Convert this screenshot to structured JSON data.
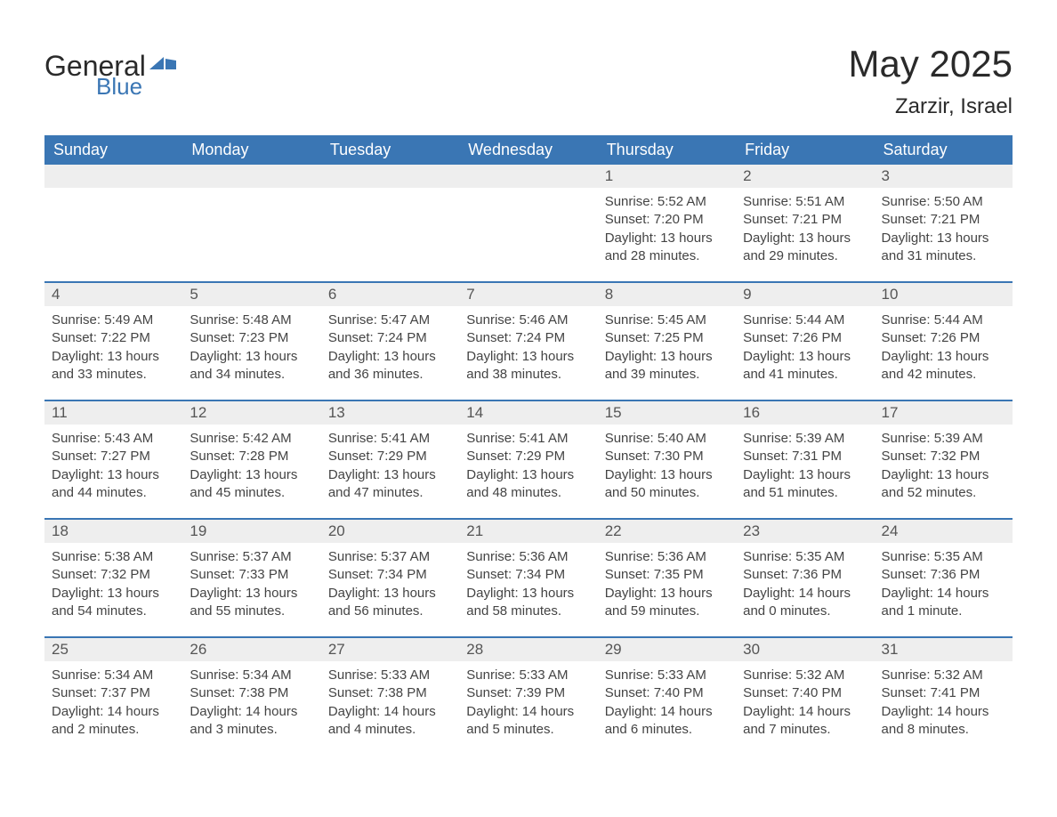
{
  "logo": {
    "text1": "General",
    "text2": "Blue"
  },
  "title": "May 2025",
  "location": "Zarzir, Israel",
  "colors": {
    "header_bg": "#3a76b4",
    "header_text": "#ffffff",
    "daynum_bg": "#eeeeee",
    "border": "#3a76b4",
    "body_text": "#444444"
  },
  "day_headers": [
    "Sunday",
    "Monday",
    "Tuesday",
    "Wednesday",
    "Thursday",
    "Friday",
    "Saturday"
  ],
  "weeks": [
    [
      {
        "num": "",
        "lines": []
      },
      {
        "num": "",
        "lines": []
      },
      {
        "num": "",
        "lines": []
      },
      {
        "num": "",
        "lines": []
      },
      {
        "num": "1",
        "lines": [
          "Sunrise: 5:52 AM",
          "Sunset: 7:20 PM",
          "Daylight: 13 hours and 28 minutes."
        ]
      },
      {
        "num": "2",
        "lines": [
          "Sunrise: 5:51 AM",
          "Sunset: 7:21 PM",
          "Daylight: 13 hours and 29 minutes."
        ]
      },
      {
        "num": "3",
        "lines": [
          "Sunrise: 5:50 AM",
          "Sunset: 7:21 PM",
          "Daylight: 13 hours and 31 minutes."
        ]
      }
    ],
    [
      {
        "num": "4",
        "lines": [
          "Sunrise: 5:49 AM",
          "Sunset: 7:22 PM",
          "Daylight: 13 hours and 33 minutes."
        ]
      },
      {
        "num": "5",
        "lines": [
          "Sunrise: 5:48 AM",
          "Sunset: 7:23 PM",
          "Daylight: 13 hours and 34 minutes."
        ]
      },
      {
        "num": "6",
        "lines": [
          "Sunrise: 5:47 AM",
          "Sunset: 7:24 PM",
          "Daylight: 13 hours and 36 minutes."
        ]
      },
      {
        "num": "7",
        "lines": [
          "Sunrise: 5:46 AM",
          "Sunset: 7:24 PM",
          "Daylight: 13 hours and 38 minutes."
        ]
      },
      {
        "num": "8",
        "lines": [
          "Sunrise: 5:45 AM",
          "Sunset: 7:25 PM",
          "Daylight: 13 hours and 39 minutes."
        ]
      },
      {
        "num": "9",
        "lines": [
          "Sunrise: 5:44 AM",
          "Sunset: 7:26 PM",
          "Daylight: 13 hours and 41 minutes."
        ]
      },
      {
        "num": "10",
        "lines": [
          "Sunrise: 5:44 AM",
          "Sunset: 7:26 PM",
          "Daylight: 13 hours and 42 minutes."
        ]
      }
    ],
    [
      {
        "num": "11",
        "lines": [
          "Sunrise: 5:43 AM",
          "Sunset: 7:27 PM",
          "Daylight: 13 hours and 44 minutes."
        ]
      },
      {
        "num": "12",
        "lines": [
          "Sunrise: 5:42 AM",
          "Sunset: 7:28 PM",
          "Daylight: 13 hours and 45 minutes."
        ]
      },
      {
        "num": "13",
        "lines": [
          "Sunrise: 5:41 AM",
          "Sunset: 7:29 PM",
          "Daylight: 13 hours and 47 minutes."
        ]
      },
      {
        "num": "14",
        "lines": [
          "Sunrise: 5:41 AM",
          "Sunset: 7:29 PM",
          "Daylight: 13 hours and 48 minutes."
        ]
      },
      {
        "num": "15",
        "lines": [
          "Sunrise: 5:40 AM",
          "Sunset: 7:30 PM",
          "Daylight: 13 hours and 50 minutes."
        ]
      },
      {
        "num": "16",
        "lines": [
          "Sunrise: 5:39 AM",
          "Sunset: 7:31 PM",
          "Daylight: 13 hours and 51 minutes."
        ]
      },
      {
        "num": "17",
        "lines": [
          "Sunrise: 5:39 AM",
          "Sunset: 7:32 PM",
          "Daylight: 13 hours and 52 minutes."
        ]
      }
    ],
    [
      {
        "num": "18",
        "lines": [
          "Sunrise: 5:38 AM",
          "Sunset: 7:32 PM",
          "Daylight: 13 hours and 54 minutes."
        ]
      },
      {
        "num": "19",
        "lines": [
          "Sunrise: 5:37 AM",
          "Sunset: 7:33 PM",
          "Daylight: 13 hours and 55 minutes."
        ]
      },
      {
        "num": "20",
        "lines": [
          "Sunrise: 5:37 AM",
          "Sunset: 7:34 PM",
          "Daylight: 13 hours and 56 minutes."
        ]
      },
      {
        "num": "21",
        "lines": [
          "Sunrise: 5:36 AM",
          "Sunset: 7:34 PM",
          "Daylight: 13 hours and 58 minutes."
        ]
      },
      {
        "num": "22",
        "lines": [
          "Sunrise: 5:36 AM",
          "Sunset: 7:35 PM",
          "Daylight: 13 hours and 59 minutes."
        ]
      },
      {
        "num": "23",
        "lines": [
          "Sunrise: 5:35 AM",
          "Sunset: 7:36 PM",
          "Daylight: 14 hours and 0 minutes."
        ]
      },
      {
        "num": "24",
        "lines": [
          "Sunrise: 5:35 AM",
          "Sunset: 7:36 PM",
          "Daylight: 14 hours and 1 minute."
        ]
      }
    ],
    [
      {
        "num": "25",
        "lines": [
          "Sunrise: 5:34 AM",
          "Sunset: 7:37 PM",
          "Daylight: 14 hours and 2 minutes."
        ]
      },
      {
        "num": "26",
        "lines": [
          "Sunrise: 5:34 AM",
          "Sunset: 7:38 PM",
          "Daylight: 14 hours and 3 minutes."
        ]
      },
      {
        "num": "27",
        "lines": [
          "Sunrise: 5:33 AM",
          "Sunset: 7:38 PM",
          "Daylight: 14 hours and 4 minutes."
        ]
      },
      {
        "num": "28",
        "lines": [
          "Sunrise: 5:33 AM",
          "Sunset: 7:39 PM",
          "Daylight: 14 hours and 5 minutes."
        ]
      },
      {
        "num": "29",
        "lines": [
          "Sunrise: 5:33 AM",
          "Sunset: 7:40 PM",
          "Daylight: 14 hours and 6 minutes."
        ]
      },
      {
        "num": "30",
        "lines": [
          "Sunrise: 5:32 AM",
          "Sunset: 7:40 PM",
          "Daylight: 14 hours and 7 minutes."
        ]
      },
      {
        "num": "31",
        "lines": [
          "Sunrise: 5:32 AM",
          "Sunset: 7:41 PM",
          "Daylight: 14 hours and 8 minutes."
        ]
      }
    ]
  ]
}
